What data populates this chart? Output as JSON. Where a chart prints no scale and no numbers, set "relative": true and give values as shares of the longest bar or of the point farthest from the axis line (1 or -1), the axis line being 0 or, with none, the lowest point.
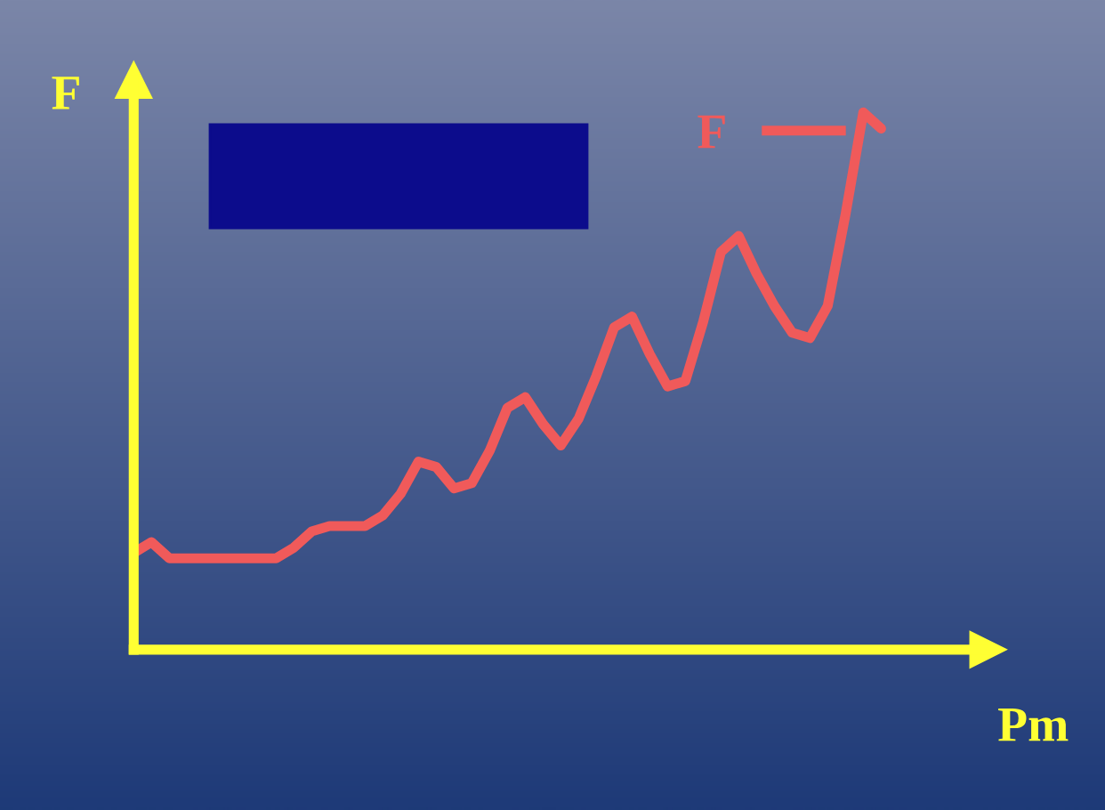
{
  "chart_data": {
    "type": "line",
    "relative": true,
    "xlabel": "Pm",
    "ylabel": "F",
    "legend": "top right",
    "marker": "none",
    "line_style": "solid",
    "categories": [
      null,
      null,
      null,
      null,
      null,
      null,
      null,
      null,
      null,
      null,
      null,
      null,
      null,
      null,
      null,
      null,
      null,
      null,
      null,
      null,
      null,
      null,
      null,
      null,
      null,
      null,
      null,
      null,
      null,
      null,
      null,
      null,
      null,
      null,
      null,
      null,
      null,
      null,
      null,
      null,
      null,
      null,
      null
    ],
    "series": [
      {
        "name": "F",
        "color": "#f05a5a",
        "values": [
          0.18,
          0.2,
          0.17,
          0.17,
          0.17,
          0.17,
          0.17,
          0.17,
          0.17,
          0.19,
          0.22,
          0.23,
          0.23,
          0.23,
          0.25,
          0.29,
          0.35,
          0.34,
          0.3,
          0.31,
          0.37,
          0.45,
          0.47,
          0.42,
          0.38,
          0.43,
          0.51,
          0.6,
          0.62,
          0.55,
          0.49,
          0.5,
          0.61,
          0.74,
          0.77,
          0.7,
          0.64,
          0.59,
          0.58,
          0.64,
          0.81,
          1.0,
          0.97
        ]
      }
    ]
  }
}
